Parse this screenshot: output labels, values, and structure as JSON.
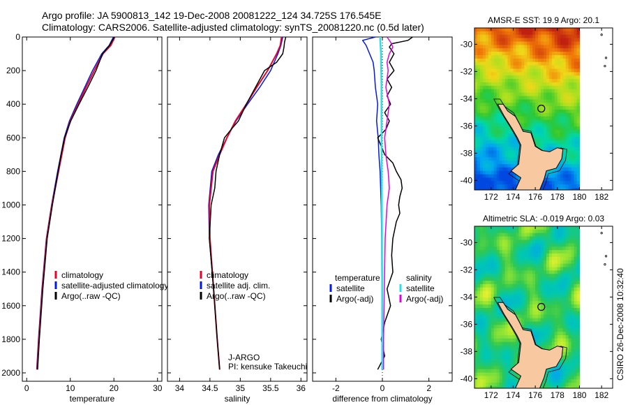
{
  "header": {
    "line1": "Argo profile: JA 5900813_142 19-Dec-2008 20081222_124 34.725S 176.545E",
    "line2": "Climatology: CARS2006. Satellite-adjusted climatology: synTS_20081220.nc (0.5d later)"
  },
  "side_label": "CSIRO 26-Dec-2008 10:32:40",
  "colors": {
    "climatology": "#e8002a",
    "satellite": "#0018e6",
    "argo": "#000000",
    "sat_salinity": "#29e0e6",
    "argo_salinity": "#e000e0"
  },
  "chart_data": [
    {
      "type": "line",
      "xlabel": "temperature",
      "xlim": [
        -1,
        31
      ],
      "ylim": [
        0,
        2050
      ],
      "xticks": [
        "0",
        "10",
        "20",
        "30"
      ],
      "yticks": [
        "0",
        "200",
        "400",
        "600",
        "800",
        "1000",
        "1200",
        "1400",
        "1600",
        "1800",
        "2000"
      ],
      "legend": [
        "climatology",
        "satellite-adjusted climatology",
        "Argo(..raw -QC)"
      ],
      "series": [
        {
          "name": "climatology",
          "color": "#e8002a",
          "depth": [
            0,
            50,
            100,
            200,
            300,
            400,
            500,
            600,
            800,
            1000,
            1200,
            1500,
            1800,
            1980
          ],
          "values": [
            20.2,
            19.3,
            17.5,
            15.5,
            13.6,
            11.8,
            10.0,
            8.8,
            7.3,
            5.8,
            4.6,
            3.6,
            2.8,
            2.4
          ]
        },
        {
          "name": "satellite-adjusted climatology",
          "color": "#0018e6",
          "depth": [
            0,
            50,
            100,
            200,
            300,
            400,
            500,
            600,
            800,
            1000,
            1200,
            1500,
            1800,
            1980
          ],
          "values": [
            19.9,
            18.9,
            17.2,
            15.1,
            13.3,
            11.5,
            9.8,
            8.6,
            7.1,
            5.7,
            4.5,
            3.5,
            2.7,
            2.3
          ]
        },
        {
          "name": "Argo(..raw -QC)",
          "color": "#000000",
          "depth": [
            0,
            50,
            100,
            200,
            300,
            400,
            500,
            600,
            700,
            800,
            1000,
            1200,
            1500,
            1800,
            1980
          ],
          "values": [
            20.1,
            19.0,
            17.4,
            15.9,
            14.0,
            12.0,
            10.1,
            8.7,
            7.9,
            7.2,
            5.9,
            4.7,
            3.7,
            2.9,
            2.5
          ]
        }
      ]
    },
    {
      "type": "line",
      "xlabel": "salinity",
      "xlim": [
        33.8,
        36.1
      ],
      "ylim": [
        0,
        2050
      ],
      "xticks": [
        "34",
        "34.5",
        "35",
        "35.5",
        "36"
      ],
      "legend": [
        "climatology",
        "satellite adj. clim.",
        "Argo(..raw -QC)"
      ],
      "annotation": [
        "J-ARGO",
        "PI: kensuke Takeuchi"
      ],
      "series": [
        {
          "name": "climatology",
          "color": "#e8002a",
          "depth": [
            0,
            50,
            100,
            200,
            300,
            400,
            500,
            600,
            700,
            800,
            1000,
            1200,
            1500,
            1800,
            1980
          ],
          "values": [
            35.68,
            35.66,
            35.6,
            35.45,
            35.27,
            35.1,
            34.92,
            34.78,
            34.66,
            34.55,
            34.49,
            34.5,
            34.56,
            34.62,
            34.66
          ]
        },
        {
          "name": "satellite adj. clim.",
          "color": "#0018e6",
          "depth": [
            0,
            50,
            100,
            200,
            300,
            400,
            500,
            600,
            700,
            800,
            1000,
            1200,
            1500,
            1800,
            1980
          ],
          "values": [
            35.7,
            35.67,
            35.62,
            35.5,
            35.32,
            35.12,
            34.93,
            34.78,
            34.64,
            34.53,
            34.48,
            34.49,
            34.56,
            34.62,
            34.66
          ]
        },
        {
          "name": "Argo(..raw -QC)",
          "color": "#000000",
          "depth": [
            0,
            30,
            60,
            100,
            150,
            200,
            300,
            400,
            500,
            550,
            600,
            700,
            800,
            900,
            1000,
            1200,
            1500,
            1800,
            1980
          ],
          "values": [
            35.75,
            35.73,
            35.72,
            35.7,
            35.6,
            35.4,
            35.25,
            35.1,
            34.97,
            34.85,
            34.74,
            34.66,
            34.6,
            34.58,
            34.52,
            34.49,
            34.56,
            34.62,
            34.66
          ]
        }
      ]
    },
    {
      "type": "line",
      "xlabel": "difference from climatology",
      "xlim": [
        -3,
        3
      ],
      "ylim": [
        0,
        2050
      ],
      "xticks": [
        "-2",
        "0",
        "2"
      ],
      "legend": {
        "temperature": [
          "satellite",
          "Argo(-adj)"
        ],
        "salinity": [
          "satellite",
          "Argo(-adj)"
        ]
      },
      "legend_headers": [
        "temperature",
        "salinity"
      ],
      "series": [
        {
          "name": "temperature satellite",
          "color": "#0018e6",
          "depth": [
            0,
            20,
            50,
            100,
            150,
            200,
            300,
            400,
            500,
            600,
            700,
            800,
            1000,
            1200,
            1500,
            1800,
            1980
          ],
          "values": [
            -0.3,
            -0.85,
            -0.7,
            -0.55,
            -0.4,
            -0.35,
            -0.3,
            -0.2,
            -0.25,
            -0.18,
            -0.15,
            -0.1,
            -0.05,
            -0.03,
            -0.02,
            -0.01,
            -0.01
          ]
        },
        {
          "name": "temperature Argo(-adj)",
          "color": "#000000",
          "depth": [
            0,
            20,
            40,
            60,
            100,
            150,
            200,
            250,
            300,
            350,
            400,
            450,
            500,
            550,
            600,
            650,
            700,
            750,
            800,
            850,
            900,
            950,
            1000,
            1050,
            1100,
            1200,
            1300,
            1400,
            1500,
            1600,
            1700,
            1800,
            1900,
            1980
          ],
          "values": [
            1.3,
            1.1,
            0.4,
            0.3,
            0.5,
            0.3,
            0.5,
            0.2,
            0.4,
            0.2,
            0.35,
            0.1,
            0.3,
            0.15,
            -0.2,
            -0.05,
            0.1,
            0.45,
            0.6,
            0.8,
            0.85,
            0.75,
            0.7,
            0.75,
            0.6,
            0.45,
            0.4,
            0.45,
            0.2,
            0.35,
            0.1,
            -0.05,
            0.1,
            -0.2
          ]
        },
        {
          "name": "salinity satellite",
          "color": "#29e0e6",
          "depth": [
            0,
            50,
            100,
            300,
            500,
            800,
            1000,
            1500,
            1980
          ],
          "values": [
            -0.1,
            -0.08,
            -0.06,
            -0.04,
            -0.04,
            -0.03,
            -0.02,
            -0.01,
            -0.01
          ]
        },
        {
          "name": "salinity Argo(-adj)",
          "color": "#e000e0",
          "depth": [
            0,
            30,
            60,
            100,
            150,
            200,
            300,
            400,
            500,
            600,
            700,
            800,
            900,
            1000,
            1200,
            1500,
            1800,
            1980
          ],
          "values": [
            0.2,
            0.35,
            0.45,
            0.3,
            0.2,
            0.25,
            0.15,
            0.3,
            0.2,
            0.1,
            0.15,
            0.25,
            0.3,
            0.2,
            0.12,
            0.08,
            0.05,
            0.05
          ]
        }
      ]
    },
    {
      "type": "heatmap",
      "title": "AMSR-E SST: 19.9 Argo: 20.1",
      "xlim": [
        170.5,
        183
      ],
      "ylim": [
        -40.7,
        -28.8
      ],
      "xticks": [
        "172",
        "174",
        "176",
        "178",
        "180",
        "182"
      ],
      "yticks": [
        "-30",
        "-32",
        "-34",
        "-36",
        "-38",
        "-40"
      ],
      "marker": {
        "lon": 176.545,
        "lat": -34.725
      }
    },
    {
      "type": "heatmap",
      "title": "Altimetric SLA: -0.019 Argo: 0.03",
      "xlim": [
        170.5,
        183
      ],
      "ylim": [
        -40.7,
        -28.8
      ],
      "xticks": [
        "172",
        "174",
        "176",
        "178",
        "180",
        "182"
      ],
      "yticks": [
        "-30",
        "-32",
        "-34",
        "-36",
        "-38",
        "-40"
      ],
      "marker": {
        "lon": 176.545,
        "lat": -34.725
      }
    }
  ]
}
